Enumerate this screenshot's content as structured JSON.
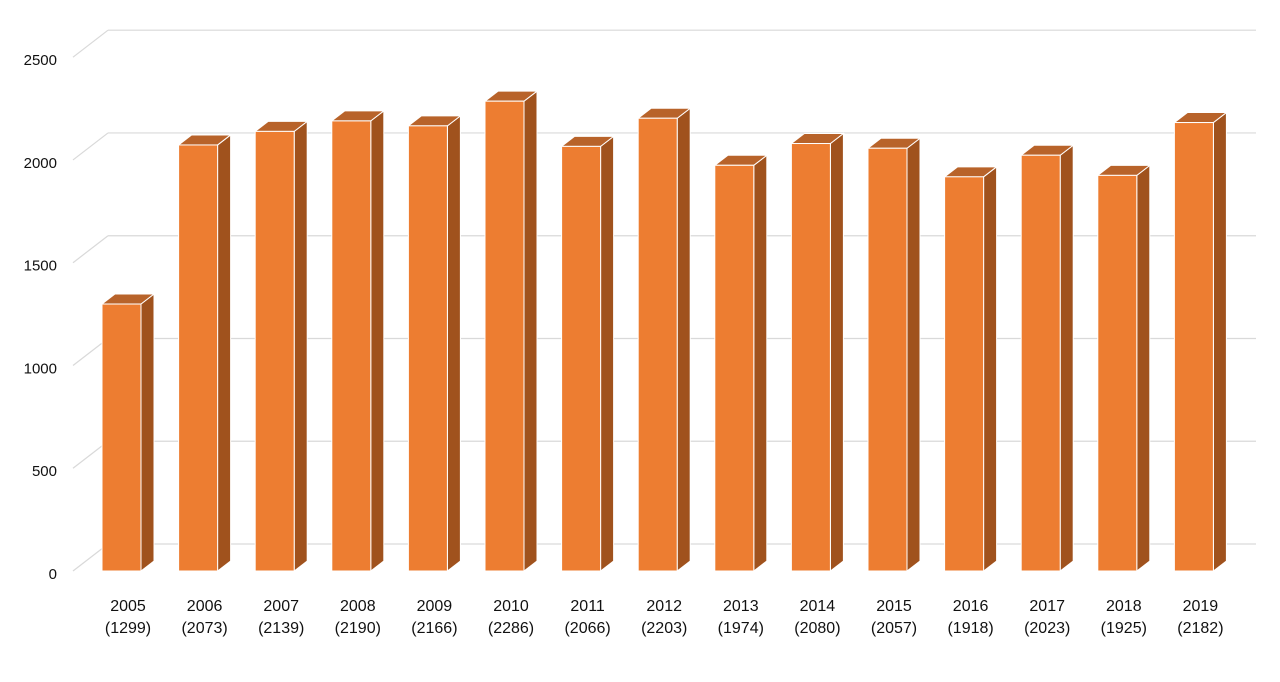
{
  "chart_data": {
    "type": "bar",
    "title": "",
    "xlabel": "",
    "ylabel": "",
    "categories": [
      "2005\n(1299)",
      "2006\n(2073)",
      "2007\n(2139)",
      "2008\n(2190)",
      "2009\n(2166)",
      "2010\n(2286)",
      "2011\n(2066)",
      "2012\n(2203)",
      "2013\n(1974)",
      "2014\n(2080)",
      "2015\n(2057)",
      "2016\n(1918)",
      "2017\n(2023)",
      "2018\n(1925)",
      "2019\n(2182)"
    ],
    "values": [
      1299,
      2073,
      2139,
      2190,
      2166,
      2286,
      2066,
      2203,
      1974,
      2080,
      2057,
      1918,
      2023,
      1925,
      2182
    ],
    "ylim": [
      0,
      2500
    ],
    "yticks": [
      "0",
      "500",
      "1000",
      "1500",
      "2000",
      "2500"
    ],
    "grid": true,
    "legend": "none",
    "style": "3d-column"
  },
  "colors": {
    "bar_front": "#ED7D31",
    "bar_side": "#A0521D",
    "bar_top": "#B8632A",
    "gridline": "#D9D9D9",
    "text": "#111111",
    "background": "#FFFFFF"
  }
}
